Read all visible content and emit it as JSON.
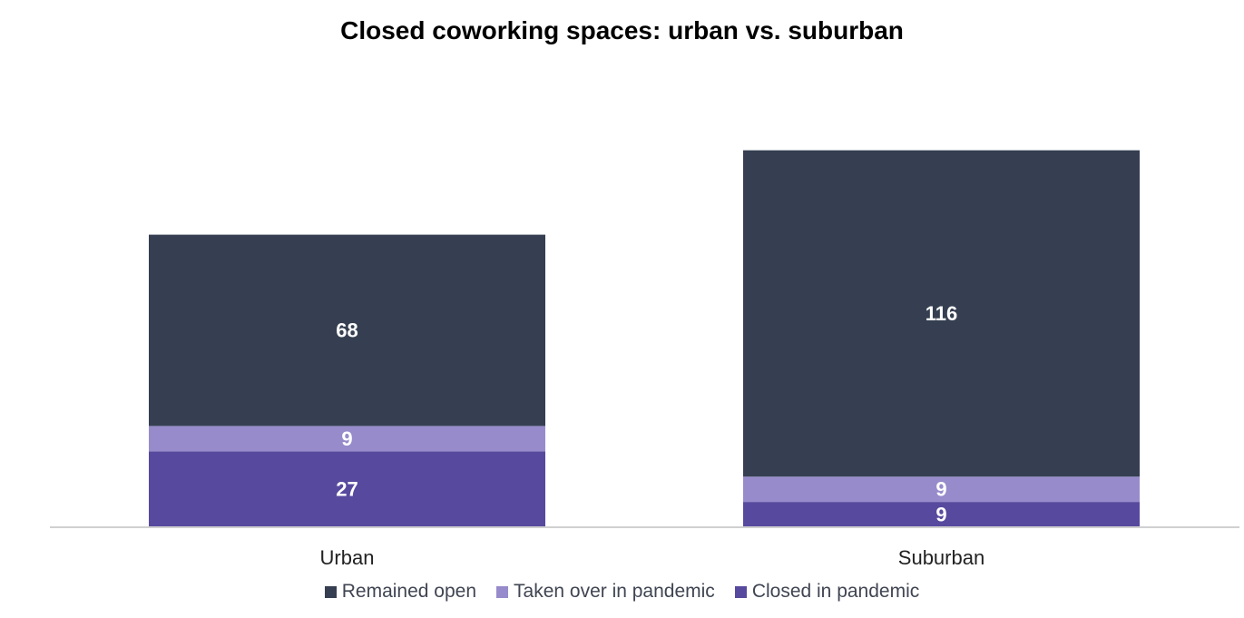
{
  "chart_data": {
    "type": "bar",
    "stacked": true,
    "title": "Closed coworking spaces: urban vs. suburban",
    "categories": [
      "Urban",
      "Suburban"
    ],
    "series": [
      {
        "name": "Closed in pandemic",
        "values": [
          27,
          9
        ],
        "color": "#574a9e"
      },
      {
        "name": "Taken over in pandemic",
        "values": [
          9,
          9
        ],
        "color": "#978bcb"
      },
      {
        "name": "Remained open",
        "values": [
          68,
          116
        ],
        "color": "#353f51"
      }
    ],
    "ylim": [
      0,
      140
    ],
    "legend_order": [
      "Remained open",
      "Taken over in pandemic",
      "Closed in pandemic"
    ],
    "legend_position": "bottom",
    "grid": false,
    "data_labels": true
  }
}
